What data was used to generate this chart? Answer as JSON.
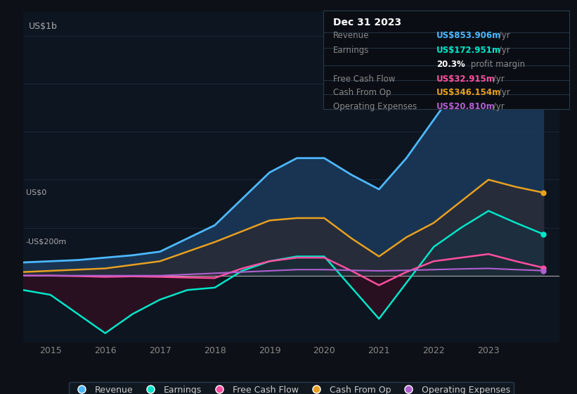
{
  "bg_color": "#0d1117",
  "plot_bg_color": "#0d1520",
  "grid_color": "#1e2a3a",
  "ylabel": "US$1b",
  "ylabel_neg": "-US$200m",
  "ylabel_zero": "US$0",
  "revenue_color": "#4db8ff",
  "earnings_color": "#00e5c8",
  "free_cash_flow_color": "#ff4fa0",
  "cash_from_op_color": "#e8a020",
  "operating_expenses_color": "#b060d0",
  "legend_bg": "#111820",
  "legend_border": "#2a3a4a",
  "info_box_bg": "#0a0e14",
  "info_box_border": "#2a3a4a",
  "ylim_min": -280,
  "ylim_max": 1100,
  "info_title": "Dec 31 2023",
  "info_revenue_label": "Revenue",
  "info_revenue_value": "US$853.906m",
  "info_earnings_label": "Earnings",
  "info_earnings_value": "US$172.951m",
  "info_margin_bold": "20.3%",
  "info_margin_rest": " profit margin",
  "info_fcf_label": "Free Cash Flow",
  "info_fcf_value": "US$32.915m",
  "info_cashop_label": "Cash From Op",
  "info_cashop_value": "US$346.154m",
  "info_opex_label": "Operating Expenses",
  "info_opex_value": "US$20.810m",
  "legend_labels": [
    "Revenue",
    "Earnings",
    "Free Cash Flow",
    "Cash From Op",
    "Operating Expenses"
  ],
  "x": [
    2014.5,
    2015,
    2015.5,
    2016,
    2016.5,
    2017,
    2017.5,
    2018,
    2018.5,
    2019,
    2019.5,
    2020,
    2020.5,
    2021,
    2021.5,
    2022,
    2022.5,
    2023,
    2023.5,
    2024
  ],
  "revenue": [
    55,
    60,
    65,
    75,
    85,
    100,
    155,
    210,
    320,
    430,
    490,
    490,
    420,
    360,
    490,
    650,
    810,
    970,
    920,
    854
  ],
  "earnings": [
    -60,
    -80,
    -160,
    -240,
    -160,
    -100,
    -60,
    -50,
    20,
    60,
    80,
    80,
    -50,
    -180,
    -30,
    120,
    200,
    270,
    220,
    173
  ],
  "cash_from_op": [
    15,
    20,
    25,
    30,
    45,
    60,
    100,
    140,
    185,
    230,
    240,
    240,
    155,
    80,
    160,
    220,
    310,
    400,
    370,
    346
  ],
  "free_cash_flow": [
    0,
    0,
    -2,
    -5,
    -3,
    -5,
    -8,
    -10,
    30,
    60,
    75,
    75,
    20,
    -40,
    15,
    60,
    75,
    90,
    60,
    33
  ],
  "operating_expenses": [
    0,
    0,
    0,
    0,
    0,
    0,
    5,
    10,
    15,
    20,
    25,
    25,
    22,
    20,
    22,
    25,
    28,
    30,
    25,
    21
  ]
}
